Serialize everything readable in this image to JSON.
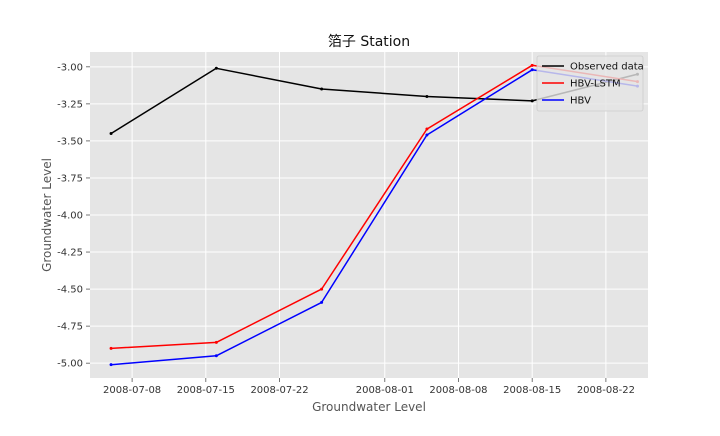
{
  "chart_data": {
    "type": "line",
    "title": "箔子 Station",
    "xlabel": "Groundwater Level",
    "ylabel": "Groundwater Level",
    "x_type": "date",
    "xlim": [
      "2008-07-04",
      "2008-08-26"
    ],
    "ylim": [
      -5.1,
      -2.9
    ],
    "x_ticks": [
      "2008-07-08",
      "2008-07-15",
      "2008-07-22",
      "2008-08-01",
      "2008-08-08",
      "2008-08-15",
      "2008-08-22"
    ],
    "y_ticks": [
      -3.0,
      -3.25,
      -3.5,
      -3.75,
      -4.0,
      -4.25,
      -4.5,
      -4.75,
      -5.0
    ],
    "grid": true,
    "legend_position": "top-right",
    "series": [
      {
        "name": "Observed data",
        "color": "#000000",
        "points": [
          {
            "x": "2008-07-06",
            "y": -3.45
          },
          {
            "x": "2008-07-16",
            "y": -3.01
          },
          {
            "x": "2008-07-26",
            "y": -3.15
          },
          {
            "x": "2008-08-05",
            "y": -3.2
          },
          {
            "x": "2008-08-15",
            "y": -3.23
          },
          {
            "x": "2008-08-25",
            "y": -3.05
          }
        ]
      },
      {
        "name": "HBV-LSTM",
        "color": "#ff0000",
        "points": [
          {
            "x": "2008-07-06",
            "y": -4.9
          },
          {
            "x": "2008-07-16",
            "y": -4.86
          },
          {
            "x": "2008-07-26",
            "y": -4.5
          },
          {
            "x": "2008-08-05",
            "y": -3.42
          },
          {
            "x": "2008-08-15",
            "y": -2.99
          },
          {
            "x": "2008-08-25",
            "y": -3.1
          }
        ]
      },
      {
        "name": "HBV",
        "color": "#0000ff",
        "points": [
          {
            "x": "2008-07-06",
            "y": -5.01
          },
          {
            "x": "2008-07-16",
            "y": -4.95
          },
          {
            "x": "2008-07-26",
            "y": -4.59
          },
          {
            "x": "2008-08-05",
            "y": -3.46
          },
          {
            "x": "2008-08-15",
            "y": -3.02
          },
          {
            "x": "2008-08-25",
            "y": -3.13
          }
        ]
      }
    ]
  }
}
